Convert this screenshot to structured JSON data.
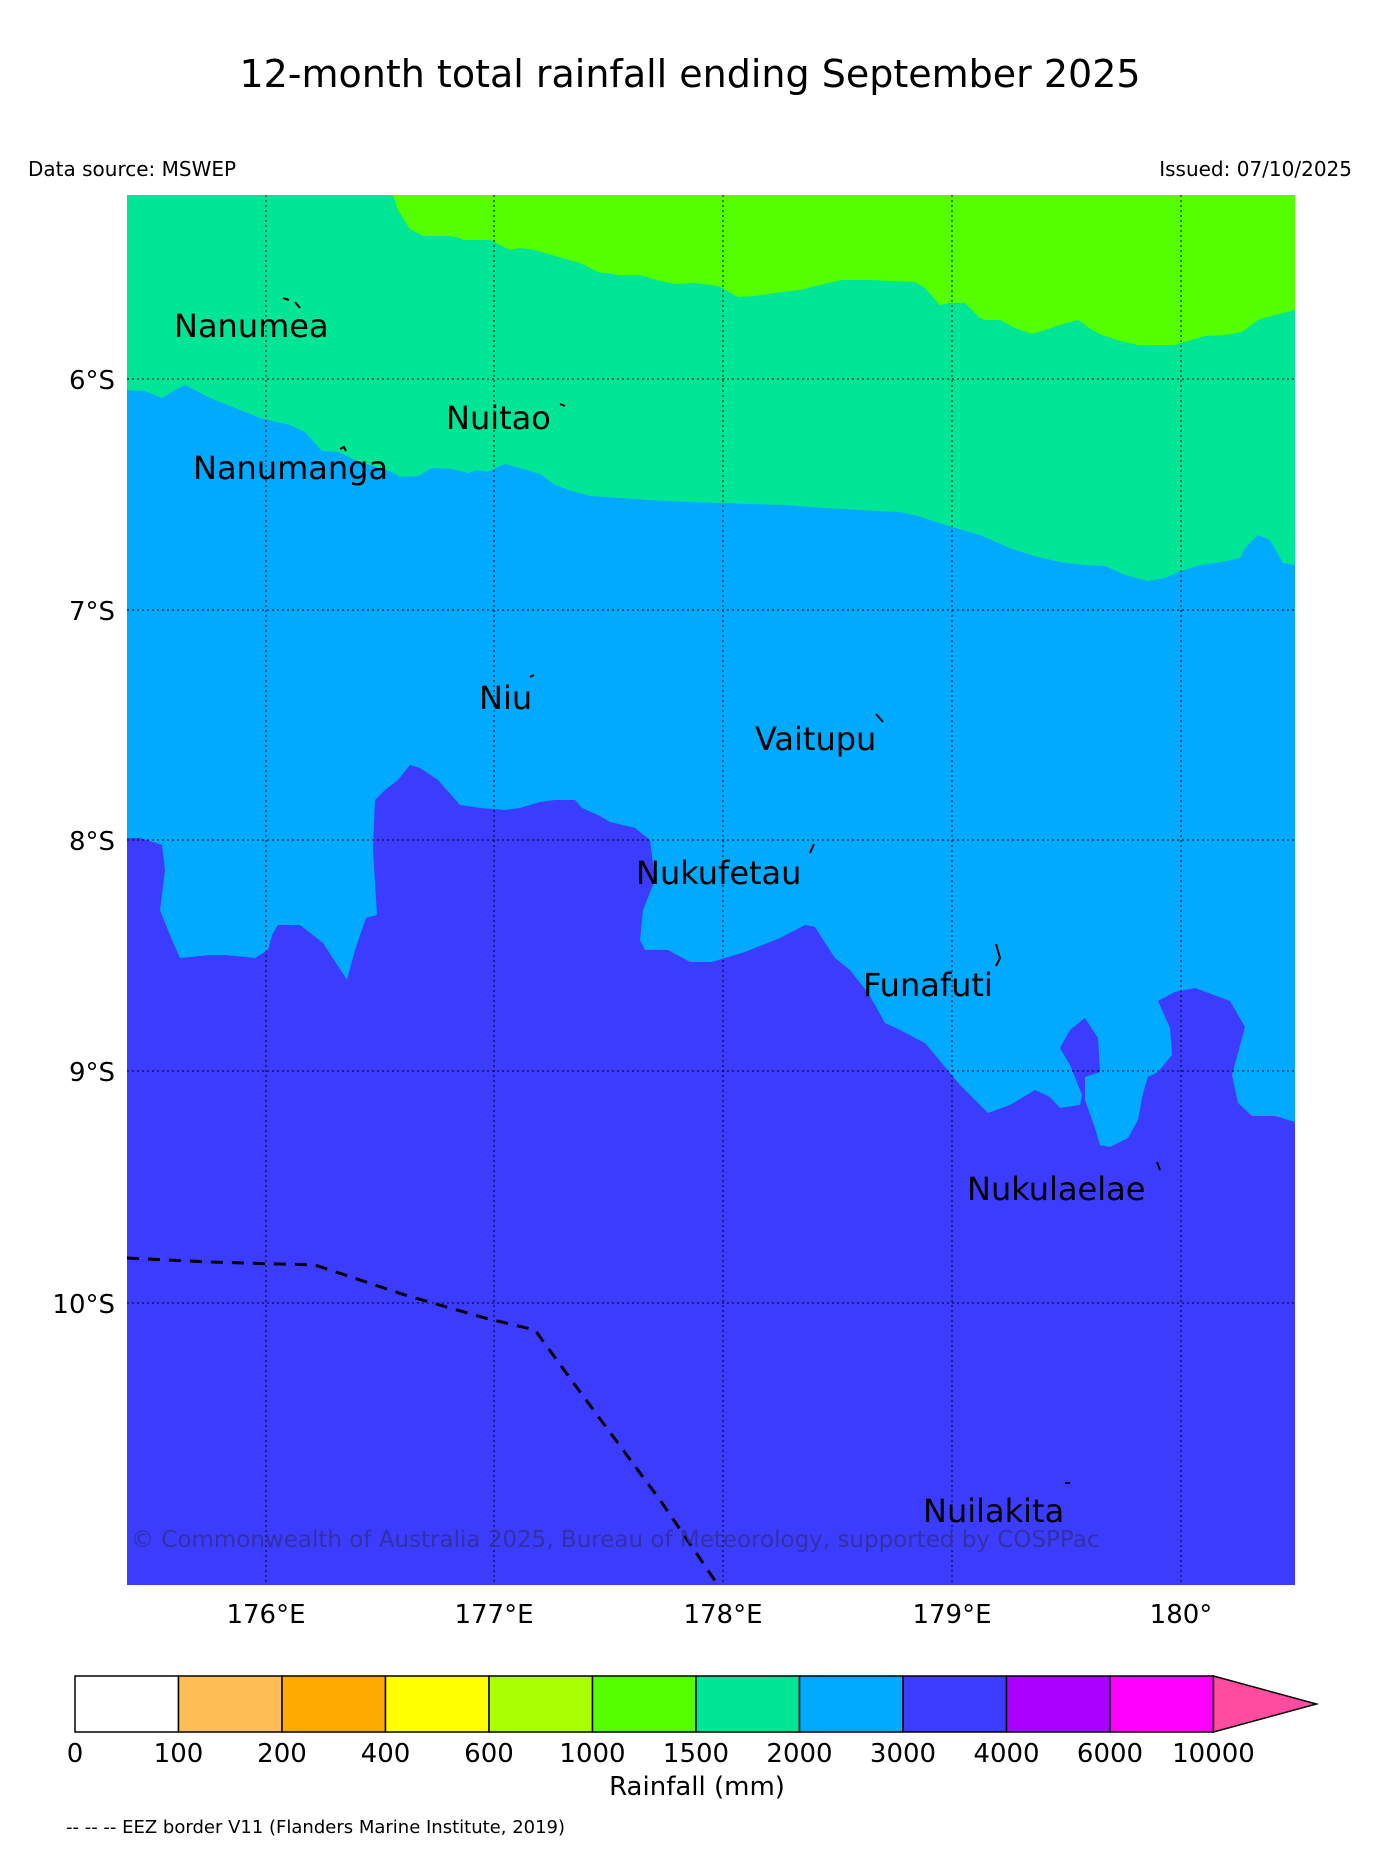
{
  "title": "12-month total rainfall ending September 2025",
  "data_source": "Data source: MSWEP",
  "issued": "Issued: 07/10/2025",
  "lat_labels": [
    "6°S",
    "7°S",
    "8°S",
    "9°S",
    "10°S"
  ],
  "lon_labels": [
    "176°E",
    "177°E",
    "178°E",
    "179°E",
    "180°"
  ],
  "islands": [
    "Nanumea",
    "Nuitao",
    "Nanumanga",
    "Niu",
    "Vaitupu",
    "Nukufetau",
    "Funafuti",
    "Nukulaelae",
    "Nuilakita"
  ],
  "copyright": "© Commonwealth of Australia 2025, Bureau of Meteorology, supported by COSPPac",
  "colorbar": {
    "label": "Rainfall (mm)",
    "ticks": [
      "0",
      "100",
      "200",
      "400",
      "600",
      "1000",
      "1500",
      "2000",
      "3000",
      "4000",
      "6000",
      "10000"
    ],
    "colors": [
      "#ffffff",
      "#ffbe55",
      "#ffaa00",
      "#ffff00",
      "#aaff00",
      "#55ff00",
      "#00e696",
      "#00aaff",
      "#3c3cff",
      "#aa00ff",
      "#ff00ff",
      "#ff4ca0"
    ]
  },
  "footnote": "-- -- -- EEZ border V11 (Flanders Marine Institute, 2019)"
}
